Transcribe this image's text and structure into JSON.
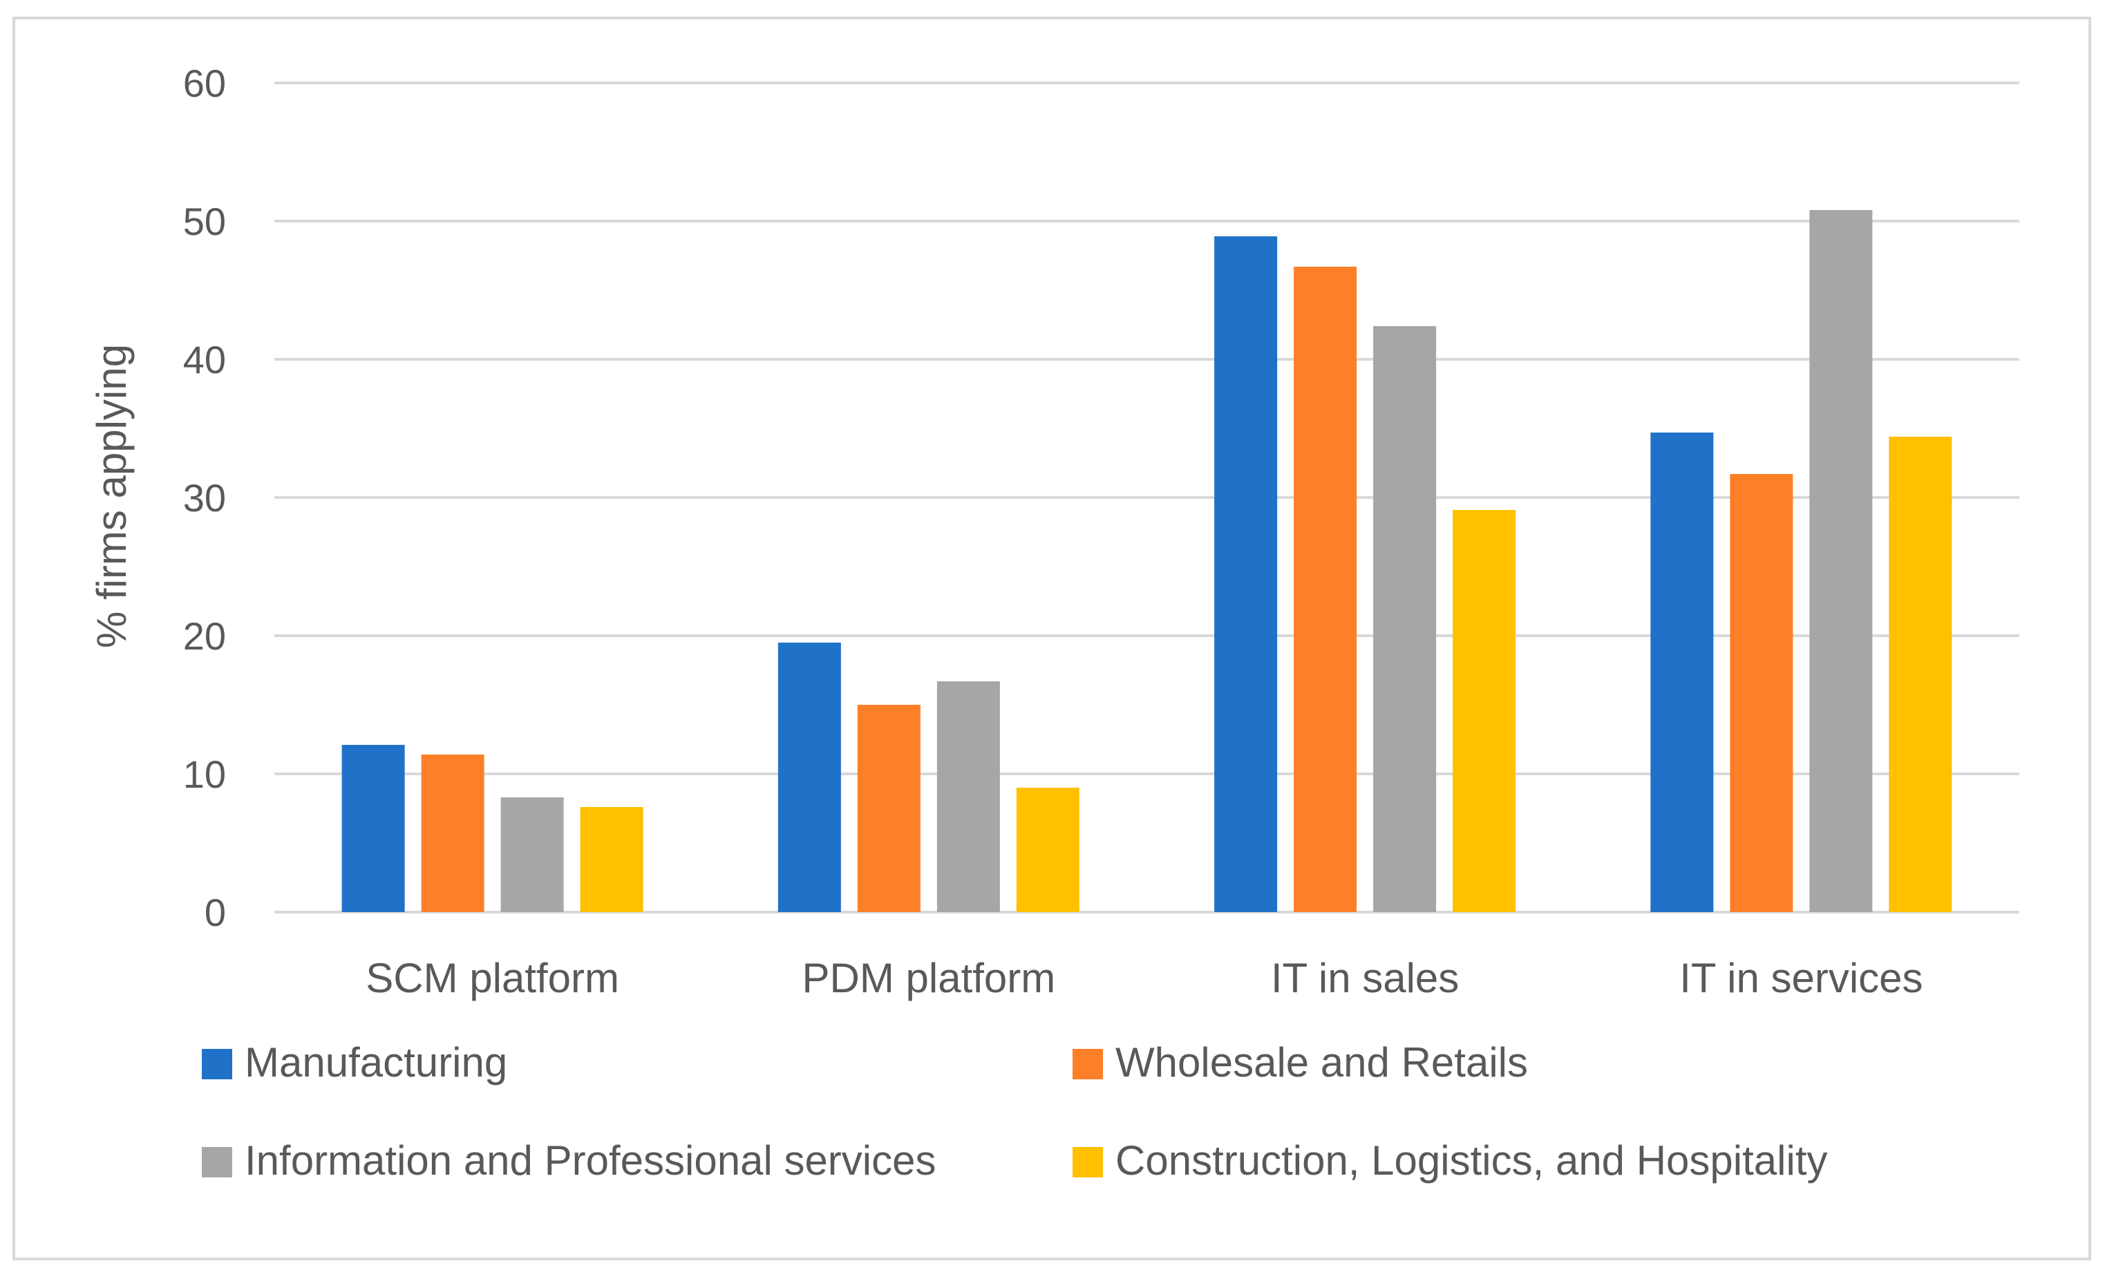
{
  "chart_data": {
    "type": "bar",
    "title": "",
    "xlabel": "",
    "ylabel": "% firms applying",
    "ylim": [
      0,
      60
    ],
    "yticks": [
      0,
      10,
      20,
      30,
      40,
      50,
      60
    ],
    "grid": true,
    "legend_position": "bottom",
    "categories": [
      "SCM platform",
      "PDM platform",
      "IT in sales",
      "IT in services"
    ],
    "series": [
      {
        "name": "Manufacturing",
        "color": "#1f72c8",
        "values": [
          12.1,
          19.5,
          48.9,
          34.7
        ]
      },
      {
        "name": "Wholesale and Retails",
        "color": "#fd7f27",
        "values": [
          11.4,
          15.0,
          46.7,
          31.7
        ]
      },
      {
        "name": "Information and Professional services",
        "color": "#a6a6a6",
        "values": [
          8.3,
          16.7,
          42.4,
          50.8
        ]
      },
      {
        "name": "Construction, Logistics, and Hospitality",
        "color": "#ffc000",
        "values": [
          7.6,
          9.0,
          29.1,
          34.4
        ]
      }
    ]
  },
  "style": {
    "gridline_color": "#d9d9d9",
    "text_color": "#595959"
  }
}
